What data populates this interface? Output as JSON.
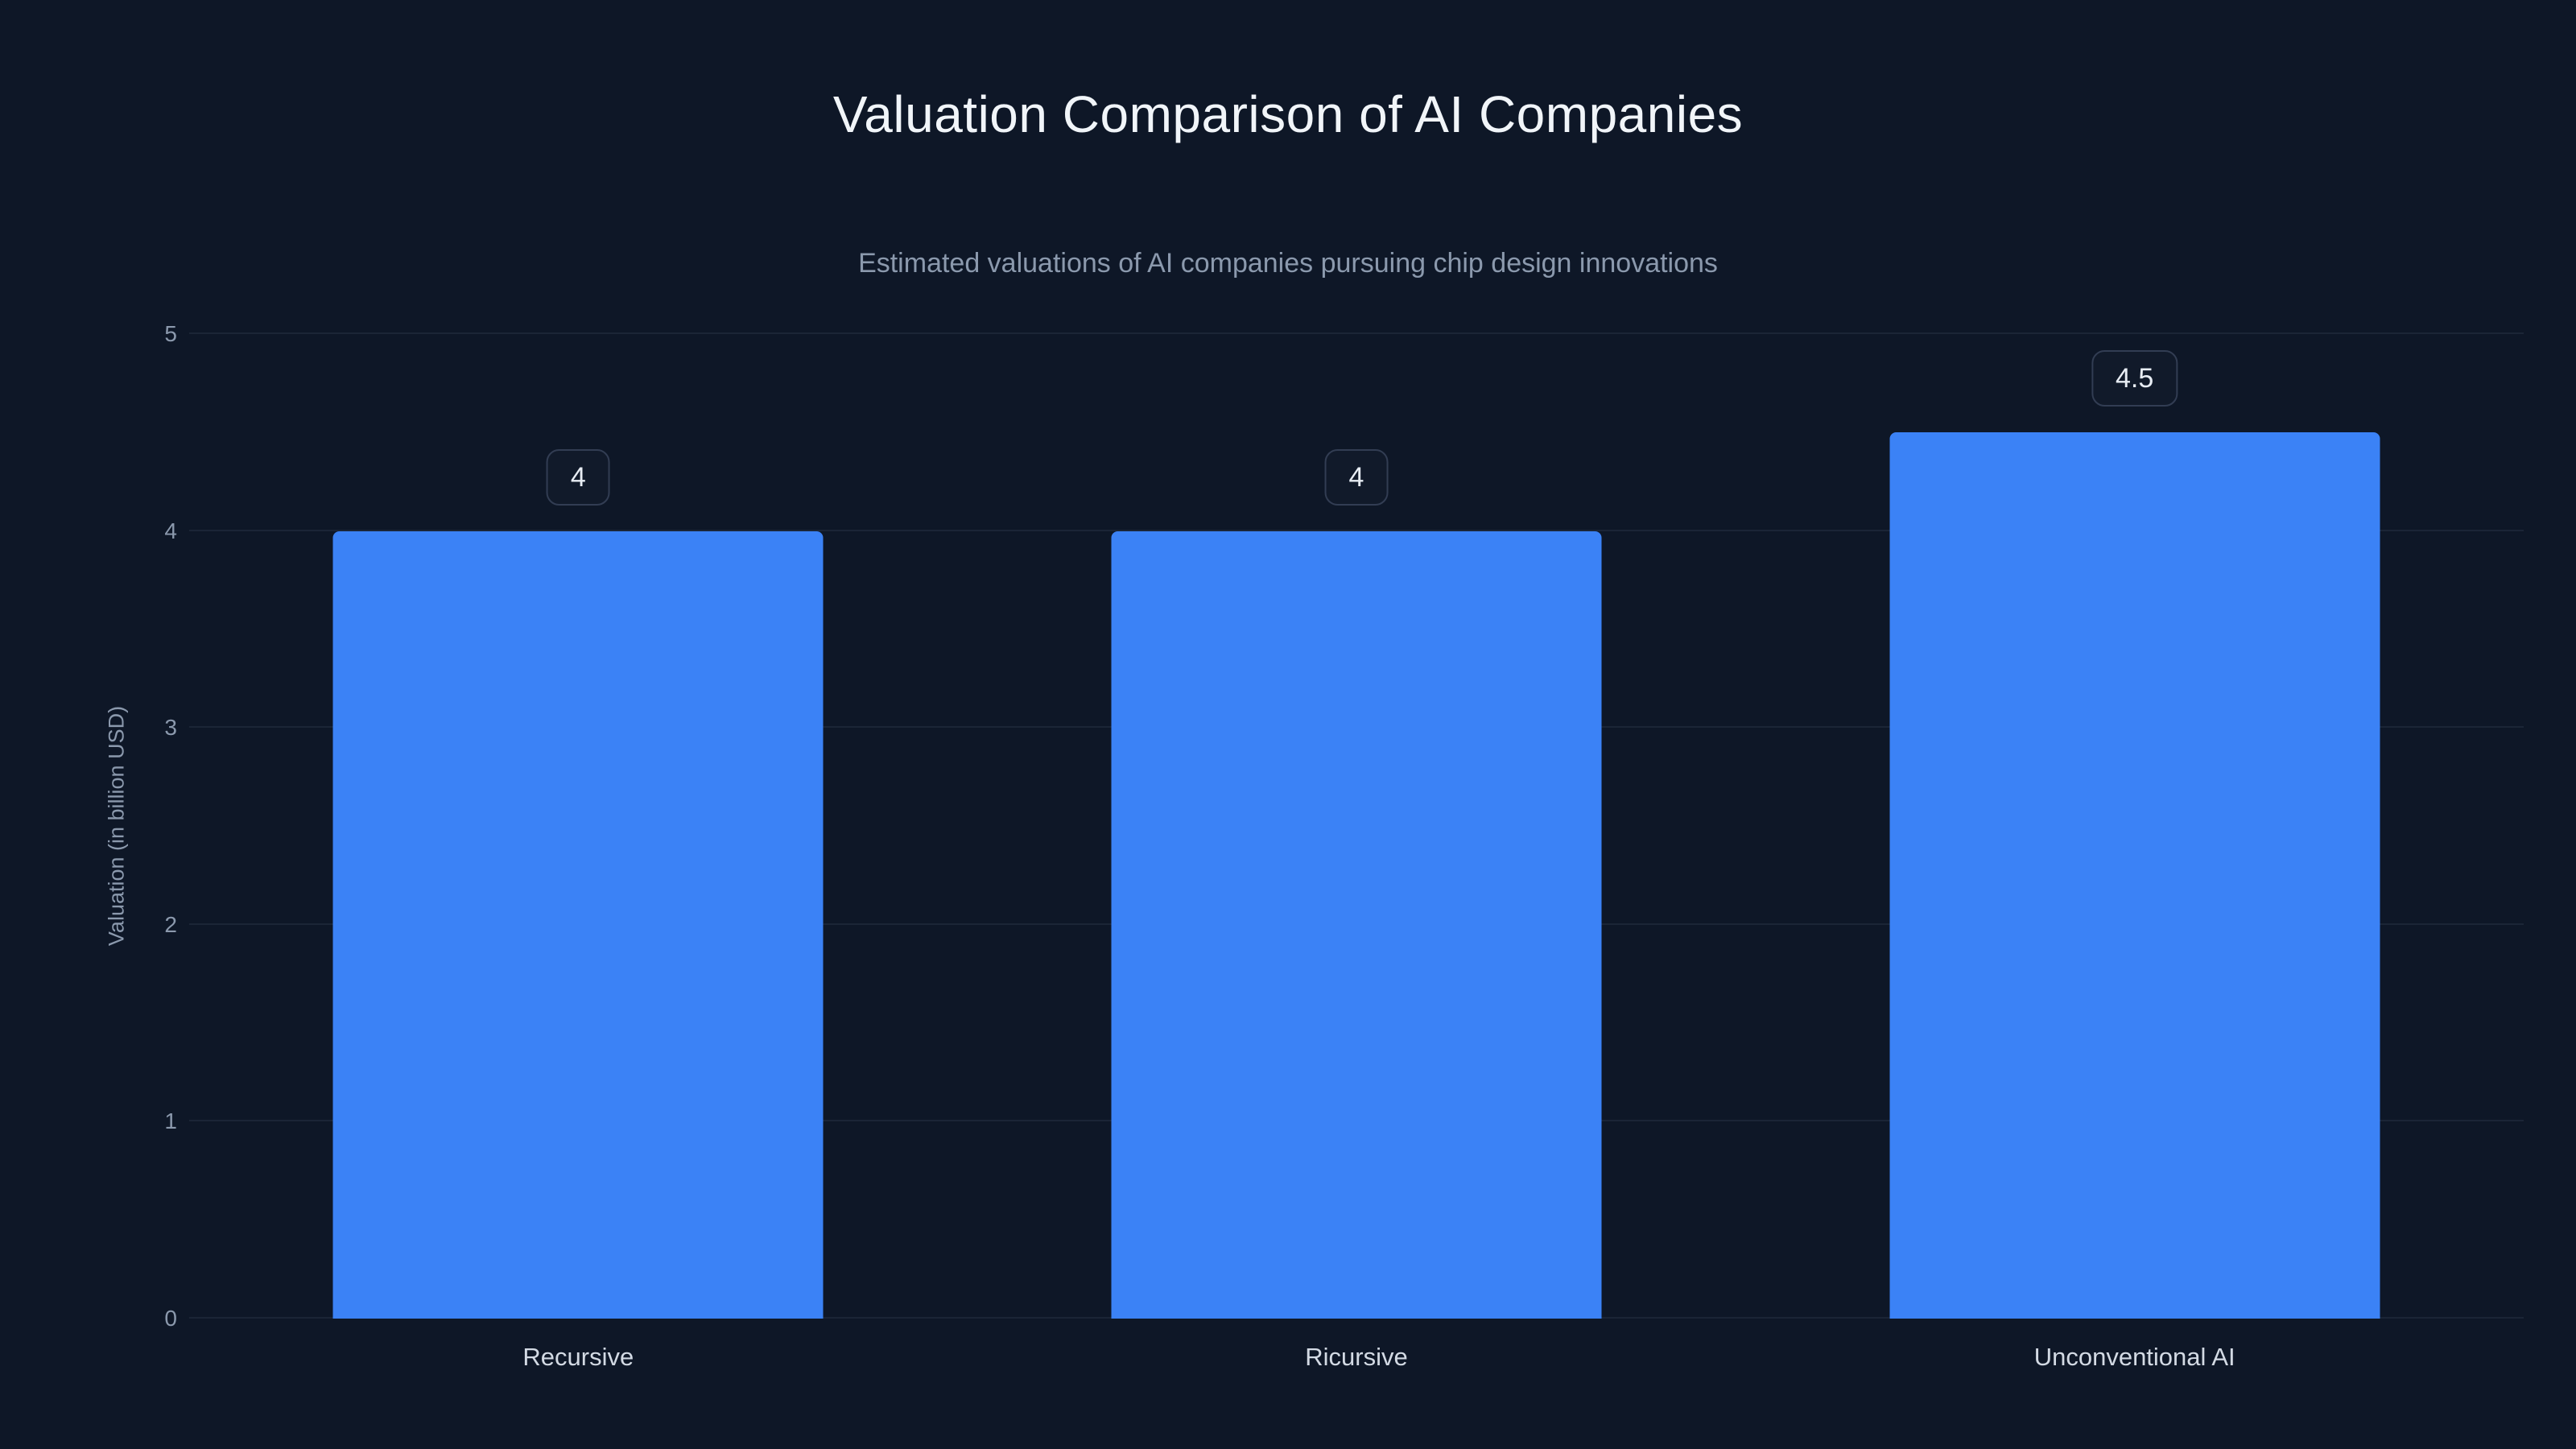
{
  "chart_data": {
    "type": "bar",
    "title": "Valuation Comparison of AI Companies",
    "subtitle": "Estimated valuations of AI companies pursuing chip design innovations",
    "categories": [
      "Recursive",
      "Ricursive",
      "Unconventional AI"
    ],
    "values": [
      4,
      4,
      4.5
    ],
    "value_labels": [
      "4",
      "4",
      "4.5"
    ],
    "xlabel": "",
    "ylabel": "Valuation (in billion USD)",
    "ylim": [
      0,
      5
    ],
    "yticks": [
      0,
      1,
      2,
      3,
      4,
      5
    ],
    "grid": true,
    "legend": "none",
    "bar_color": "#3b82f6",
    "background_color": "#0e1727",
    "title_color": "#f1f5f9",
    "subtitle_color": "#8b99ad"
  }
}
